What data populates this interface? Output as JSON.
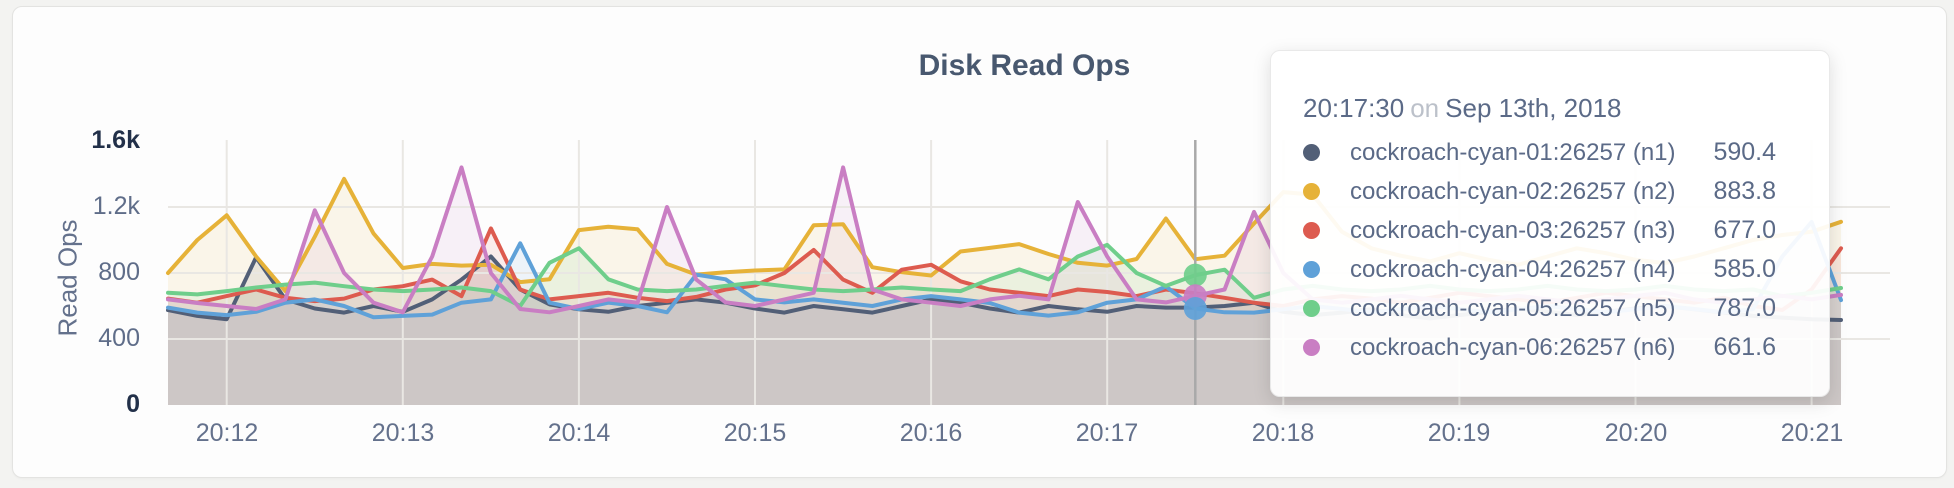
{
  "page": {
    "background": "#f3f3f1"
  },
  "card": {
    "title": "Disk Read Ops"
  },
  "chart_data": {
    "type": "area",
    "title": "Disk Read Ops",
    "ylabel": "Read Ops",
    "ylim": [
      0,
      1600
    ],
    "yticks": [
      {
        "value": 1600,
        "label": "1.6k",
        "strong": true
      },
      {
        "value": 1200,
        "label": "1.2k",
        "strong": false
      },
      {
        "value": 800,
        "label": "800",
        "strong": false
      },
      {
        "value": 400,
        "label": "400",
        "strong": false
      },
      {
        "value": 0,
        "label": "0",
        "strong": true
      }
    ],
    "xticks": [
      "20:12",
      "20:13",
      "20:14",
      "20:15",
      "20:16",
      "20:17",
      "20:18",
      "20:19",
      "20:20",
      "20:21"
    ],
    "x_start": "20:11:40",
    "x_step_seconds": 10,
    "grid": true,
    "gridline_color": "#e9e7e3",
    "series": [
      {
        "name": "cockroach-cyan-01:26257 (n1)",
        "short": "n1",
        "color": "#525f77",
        "values": [
          575,
          540,
          520,
          895,
          640,
          585,
          560,
          600,
          565,
          640,
          760,
          900,
          700,
          610,
          580,
          565,
          600,
          620,
          640,
          620,
          585,
          560,
          600,
          580,
          560,
          600,
          640,
          620,
          585,
          560,
          600,
          580,
          565,
          600,
          590,
          590.4,
          600,
          620,
          565,
          545,
          560,
          580,
          545,
          525,
          545,
          565,
          585,
          565,
          545,
          565,
          585,
          600,
          580,
          560,
          540,
          530,
          520,
          515
        ]
      },
      {
        "name": "cockroach-cyan-02:26257 (n2)",
        "short": "n2",
        "color": "#e6b238",
        "values": [
          800,
          1000,
          1150,
          900,
          690,
          1020,
          1370,
          1040,
          830,
          855,
          845,
          850,
          745,
          762,
          1060,
          1080,
          1065,
          855,
          790,
          805,
          815,
          822,
          1090,
          1095,
          835,
          805,
          785,
          930,
          952,
          975,
          915,
          862,
          845,
          885,
          1130,
          883.8,
          905,
          1100,
          1290,
          1275,
          1050,
          950,
          905,
          870,
          920,
          880,
          850,
          900,
          950,
          920,
          880,
          860,
          900,
          950,
          1000,
          1030,
          1050,
          1110
        ]
      },
      {
        "name": "cockroach-cyan-03:26257 (n3)",
        "short": "n3",
        "color": "#dd5b4f",
        "values": [
          645,
          620,
          660,
          700,
          650,
          630,
          645,
          700,
          720,
          760,
          660,
          1070,
          700,
          640,
          660,
          680,
          650,
          630,
          655,
          700,
          725,
          800,
          940,
          760,
          680,
          820,
          850,
          750,
          700,
          680,
          660,
          700,
          685,
          660,
          700,
          677,
          650,
          620,
          600,
          640,
          660,
          645,
          620,
          650,
          680,
          660,
          640,
          620,
          650,
          680,
          660,
          640,
          620,
          650,
          600,
          576,
          700,
          950
        ]
      },
      {
        "name": "cockroach-cyan-04:26257 (n4)",
        "short": "n4",
        "color": "#5fa1d8",
        "values": [
          590,
          560,
          545,
          565,
          620,
          640,
          600,
          532,
          540,
          548,
          620,
          640,
          980,
          620,
          582,
          620,
          600,
          562,
          790,
          762,
          640,
          622,
          640,
          620,
          600,
          640,
          660,
          640,
          618,
          560,
          542,
          562,
          620,
          640,
          718,
          585,
          562,
          560,
          580,
          600,
          582,
          562,
          580,
          600,
          582,
          562,
          580,
          600,
          582,
          562,
          580,
          600,
          582,
          562,
          580,
          900,
          1109,
          636
        ]
      },
      {
        "name": "cockroach-cyan-05:26257 (n5)",
        "short": "n5",
        "color": "#6fce8b",
        "values": [
          680,
          670,
          690,
          712,
          730,
          742,
          720,
          700,
          690,
          700,
          712,
          690,
          600,
          862,
          950,
          762,
          700,
          690,
          700,
          722,
          742,
          720,
          700,
          690,
          700,
          712,
          700,
          690,
          762,
          822,
          762,
          900,
          970,
          800,
          722,
          787,
          820,
          650,
          700,
          722,
          700,
          690,
          700,
          722,
          700,
          690,
          700,
          722,
          700,
          690,
          700,
          722,
          700,
          690,
          700,
          660,
          680,
          709
        ]
      },
      {
        "name": "cockroach-cyan-06:26257 (n6)",
        "short": "n6",
        "color": "#c97ec3",
        "values": [
          640,
          618,
          600,
          582,
          640,
          1180,
          800,
          620,
          562,
          900,
          1440,
          800,
          582,
          562,
          600,
          640,
          620,
          1200,
          760,
          622,
          600,
          640,
          680,
          1440,
          700,
          640,
          620,
          600,
          640,
          662,
          640,
          1230,
          900,
          640,
          622,
          661.6,
          700,
          1170,
          800,
          640,
          620,
          640,
          662,
          640,
          620,
          640,
          662,
          640,
          620,
          640,
          662,
          680,
          640,
          620,
          640,
          662,
          640,
          667
        ]
      },
      {
        "name": "",
        "short": "",
        "color": "",
        "values": []
      }
    ],
    "hover": {
      "time": "20:17:30",
      "index": 35,
      "dot_series": [
        "n5",
        "n6",
        "n4"
      ],
      "crosshair_color": "#a9a9a9"
    }
  },
  "tooltip": {
    "time": "20:17:30",
    "on_word": "on",
    "date": "Sep 13th, 2018",
    "rows": [
      {
        "name": "cockroach-cyan-01:26257 (n1)",
        "value": "590.4",
        "color": "#525f77"
      },
      {
        "name": "cockroach-cyan-02:26257 (n2)",
        "value": "883.8",
        "color": "#e6b238"
      },
      {
        "name": "cockroach-cyan-03:26257 (n3)",
        "value": "677.0",
        "color": "#dd5b4f"
      },
      {
        "name": "cockroach-cyan-04:26257 (n4)",
        "value": "585.0",
        "color": "#5fa1d8"
      },
      {
        "name": "cockroach-cyan-05:26257 (n5)",
        "value": "787.0",
        "color": "#6fce8b"
      },
      {
        "name": "cockroach-cyan-06:26257 (n6)",
        "value": "661.6",
        "color": "#c97ec3"
      }
    ]
  }
}
